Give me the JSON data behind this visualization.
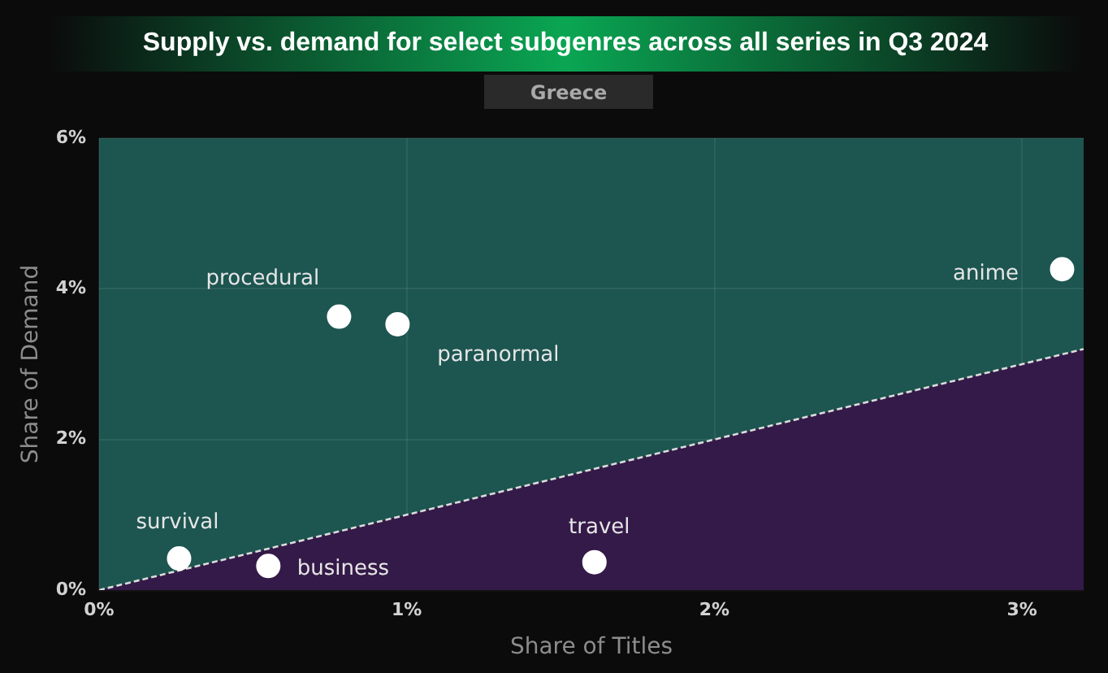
{
  "chart_data": {
    "type": "scatter",
    "title": "Supply vs. demand for select subgenres across all series in Q3 2024",
    "subtitle": "Greece",
    "xlabel": "Share of Titles",
    "ylabel": "Share of Demand",
    "xlim": [
      0,
      3.2
    ],
    "ylim": [
      0,
      6
    ],
    "xticks": [
      {
        "value": 0,
        "label": "0%"
      },
      {
        "value": 1,
        "label": "1%"
      },
      {
        "value": 2,
        "label": "2%"
      },
      {
        "value": 3,
        "label": "3%"
      }
    ],
    "yticks": [
      {
        "value": 0,
        "label": "0%"
      },
      {
        "value": 2,
        "label": "2%"
      },
      {
        "value": 4,
        "label": "4%"
      },
      {
        "value": 6,
        "label": "6%"
      }
    ],
    "grid": true,
    "marker": "circle",
    "series": [
      {
        "type": "area",
        "color": "#341a48",
        "line_style": "dashed",
        "marker": "none",
        "x": [
          0,
          3.2
        ],
        "values": [
          0,
          3.2
        ]
      },
      {
        "name": "procedural",
        "color": "#ffffff",
        "x": [
          0.78
        ],
        "values": [
          3.63
        ]
      },
      {
        "name": "paranormal",
        "color": "#ffffff",
        "x": [
          0.97
        ],
        "values": [
          3.53
        ]
      },
      {
        "name": "anime",
        "color": "#ffffff",
        "x": [
          3.13
        ],
        "values": [
          4.26
        ]
      },
      {
        "name": "survival",
        "color": "#ffffff",
        "x": [
          0.26
        ],
        "values": [
          0.42
        ]
      },
      {
        "name": "business",
        "color": "#ffffff",
        "x": [
          0.55
        ],
        "values": [
          0.32
        ]
      },
      {
        "name": "travel",
        "color": "#ffffff",
        "x": [
          1.61
        ],
        "values": [
          0.37
        ]
      }
    ]
  }
}
